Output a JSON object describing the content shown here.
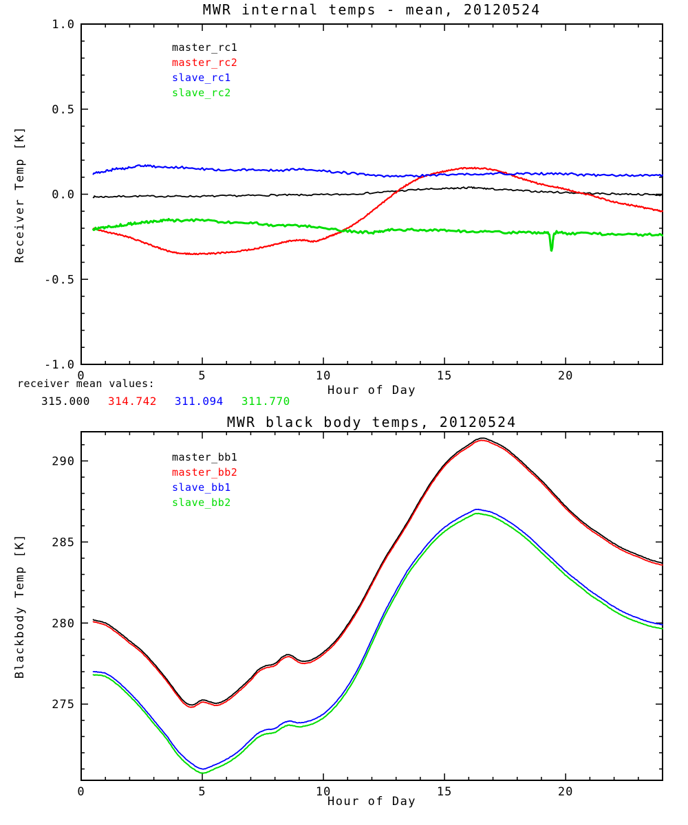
{
  "page": {
    "background": "#ffffff"
  },
  "colors": {
    "black": "#000000",
    "red": "#ff0000",
    "blue": "#0000ff",
    "green": "#00dd00"
  },
  "annotations": {
    "receiver_means": {
      "label": "receiver mean values:",
      "values": [
        {
          "text": "315.000",
          "color": "#000000"
        },
        {
          "text": "314.742",
          "color": "#ff0000"
        },
        {
          "text": "311.094",
          "color": "#0000ff"
        },
        {
          "text": "311.770",
          "color": "#00dd00"
        }
      ]
    }
  },
  "chart_data": [
    {
      "id": "receiver_temps",
      "type": "line",
      "title": "MWR internal temps - mean, 20120524",
      "xlabel": "Hour of Day",
      "ylabel": "Receiver Temp [K]",
      "xlim": [
        0,
        24
      ],
      "ylim": [
        -1.0,
        1.0
      ],
      "xticks": [
        0,
        5,
        10,
        15,
        20
      ],
      "xtick_labels": [
        "0",
        "5",
        "10",
        "15",
        "20"
      ],
      "xminor": 1,
      "yticks": [
        -1.0,
        -0.5,
        0.0,
        0.5,
        1.0
      ],
      "ytick_labels": [
        "-1.0",
        "-0.5",
        "0.0",
        "0.5",
        "1.0"
      ],
      "yminor": 0.1,
      "grid": false,
      "legend_position": "upper-left-inside",
      "legend": [
        {
          "name": "master_rc1",
          "color": "#000000"
        },
        {
          "name": "master_rc2",
          "color": "#ff0000"
        },
        {
          "name": "slave_rc1",
          "color": "#0000ff"
        },
        {
          "name": "slave_rc2",
          "color": "#00dd00"
        }
      ],
      "series": [
        {
          "name": "master_rc1",
          "color": "#000000",
          "width": 1.8,
          "noise": 0.005,
          "x": [
            0.5,
            1,
            2,
            3,
            4,
            5,
            6,
            7,
            8,
            9,
            10,
            11,
            12,
            13,
            14,
            15,
            15.5,
            16,
            16.5,
            17,
            18,
            19,
            20,
            21,
            22,
            23,
            24
          ],
          "y": [
            -0.015,
            -0.015,
            -0.012,
            -0.012,
            -0.012,
            -0.012,
            -0.01,
            -0.008,
            -0.005,
            -0.005,
            -0.003,
            0,
            0.008,
            0.018,
            0.028,
            0.032,
            0.035,
            0.038,
            0.035,
            0.03,
            0.022,
            0.015,
            0.01,
            0.005,
            0.002,
            0,
            -0.005
          ]
        },
        {
          "name": "master_rc2",
          "color": "#ff0000",
          "width": 2.2,
          "noise": 0.004,
          "x": [
            0.5,
            1,
            1.5,
            2,
            2.5,
            3,
            3.5,
            4,
            4.5,
            5,
            5.5,
            6,
            6.5,
            7,
            7.5,
            8,
            8.5,
            9,
            9.3,
            9.6,
            10,
            10.3,
            10.6,
            11,
            11.5,
            12,
            12.5,
            13,
            13.5,
            14,
            14.5,
            15,
            15.5,
            16,
            16.5,
            17,
            17.5,
            18,
            18.5,
            19,
            19.5,
            20,
            20.5,
            21,
            21.5,
            22,
            22.5,
            23,
            23.5,
            24
          ],
          "y": [
            -0.2,
            -0.22,
            -0.235,
            -0.255,
            -0.28,
            -0.305,
            -0.33,
            -0.345,
            -0.35,
            -0.35,
            -0.348,
            -0.342,
            -0.335,
            -0.325,
            -0.312,
            -0.295,
            -0.278,
            -0.27,
            -0.272,
            -0.278,
            -0.262,
            -0.245,
            -0.228,
            -0.2,
            -0.155,
            -0.1,
            -0.045,
            0.01,
            0.06,
            0.095,
            0.12,
            0.135,
            0.148,
            0.153,
            0.152,
            0.143,
            0.125,
            0.1,
            0.078,
            0.058,
            0.045,
            0.03,
            0.012,
            -0.005,
            -0.025,
            -0.045,
            -0.06,
            -0.072,
            -0.088,
            -0.1
          ]
        },
        {
          "name": "slave_rc1",
          "color": "#0000ff",
          "width": 2.2,
          "noise": 0.007,
          "x": [
            0.5,
            1,
            1.5,
            2,
            2.5,
            3,
            4,
            5,
            6,
            7,
            8,
            9,
            10,
            11,
            12,
            13,
            14,
            15,
            16,
            17,
            18,
            19,
            20,
            21,
            22,
            23,
            24
          ],
          "y": [
            0.125,
            0.135,
            0.15,
            0.155,
            0.17,
            0.162,
            0.158,
            0.148,
            0.14,
            0.143,
            0.14,
            0.145,
            0.135,
            0.125,
            0.112,
            0.105,
            0.11,
            0.112,
            0.118,
            0.122,
            0.12,
            0.12,
            0.12,
            0.112,
            0.112,
            0.112,
            0.112
          ]
        },
        {
          "name": "slave_rc2",
          "color": "#00dd00",
          "width": 3.0,
          "noise": 0.007,
          "x": [
            0.5,
            1,
            1.5,
            2,
            2.5,
            3,
            3.5,
            4,
            5,
            6,
            7,
            8,
            9,
            10,
            11,
            12,
            12.5,
            13,
            14,
            15,
            16,
            17,
            18,
            19,
            19.3,
            19.42,
            19.55,
            20,
            21,
            22,
            23,
            24
          ],
          "y": [
            -0.205,
            -0.195,
            -0.185,
            -0.175,
            -0.165,
            -0.16,
            -0.152,
            -0.155,
            -0.152,
            -0.165,
            -0.168,
            -0.182,
            -0.185,
            -0.195,
            -0.215,
            -0.225,
            -0.215,
            -0.208,
            -0.21,
            -0.212,
            -0.22,
            -0.222,
            -0.225,
            -0.228,
            -0.23,
            -0.33,
            -0.23,
            -0.23,
            -0.232,
            -0.235,
            -0.238,
            -0.238
          ]
        }
      ]
    },
    {
      "id": "blackbody_temps",
      "type": "line",
      "title": "MWR black body temps, 20120524",
      "xlabel": "Hour of Day",
      "ylabel": "Blackbody Temp [K]",
      "xlim": [
        0,
        24
      ],
      "ylim": [
        270.3,
        291.8
      ],
      "xticks": [
        0,
        5,
        10,
        15,
        20
      ],
      "xtick_labels": [
        "0",
        "5",
        "10",
        "15",
        "20"
      ],
      "xminor": 1,
      "yticks": [
        275,
        280,
        285,
        290
      ],
      "ytick_labels": [
        "275",
        "280",
        "285",
        "290"
      ],
      "yminor": 1,
      "grid": false,
      "legend_position": "upper-left-inside",
      "legend": [
        {
          "name": "master_bb1",
          "color": "#000000"
        },
        {
          "name": "master_bb2",
          "color": "#ff0000"
        },
        {
          "name": "slave_bb1",
          "color": "#0000ff"
        },
        {
          "name": "slave_bb2",
          "color": "#00dd00"
        }
      ],
      "series": [
        {
          "name": "master_bb1",
          "color": "#000000",
          "width": 1.8,
          "noise": 0.015,
          "x": [
            0.5,
            1,
            1.5,
            2,
            2.5,
            3,
            3.5,
            4,
            4.3,
            4.6,
            5,
            5.3,
            5.6,
            6,
            6.5,
            7,
            7.3,
            7.6,
            8,
            8.3,
            8.6,
            9,
            9.3,
            9.6,
            10,
            10.5,
            11,
            11.5,
            12,
            12.5,
            13,
            13.5,
            14,
            14.5,
            15,
            15.5,
            16,
            16.3,
            16.6,
            17,
            17.5,
            18,
            18.5,
            19,
            19.5,
            20,
            20.5,
            21,
            21.5,
            22,
            22.5,
            23,
            23.5,
            24
          ],
          "y": [
            280.2,
            280.0,
            279.5,
            278.9,
            278.3,
            277.5,
            276.6,
            275.6,
            275.1,
            274.95,
            275.25,
            275.15,
            275.05,
            275.3,
            275.9,
            276.6,
            277.1,
            277.35,
            277.5,
            277.9,
            278.05,
            277.7,
            277.65,
            277.8,
            278.2,
            278.9,
            279.9,
            281.1,
            282.5,
            283.9,
            285.1,
            286.3,
            287.6,
            288.8,
            289.8,
            290.5,
            291.0,
            291.3,
            291.4,
            291.2,
            290.8,
            290.2,
            289.5,
            288.8,
            288.0,
            287.2,
            286.5,
            285.9,
            285.4,
            284.9,
            284.5,
            284.2,
            283.9,
            283.7
          ]
        },
        {
          "name": "master_bb2",
          "color": "#ff0000",
          "width": 1.8,
          "noise": 0.015,
          "x": [
            0.5,
            1,
            1.5,
            2,
            2.5,
            3,
            3.5,
            4,
            4.3,
            4.6,
            5,
            5.3,
            5.6,
            6,
            6.5,
            7,
            7.3,
            7.6,
            8,
            8.3,
            8.6,
            9,
            9.3,
            9.6,
            10,
            10.5,
            11,
            11.5,
            12,
            12.5,
            13,
            13.5,
            14,
            14.5,
            15,
            15.5,
            16,
            16.3,
            16.6,
            17,
            17.5,
            18,
            18.5,
            19,
            19.5,
            20,
            20.5,
            21,
            21.5,
            22,
            22.5,
            23,
            23.5,
            24
          ],
          "y": [
            280.08,
            279.87,
            279.37,
            278.77,
            278.17,
            277.37,
            276.47,
            275.47,
            274.97,
            274.82,
            275.12,
            275.02,
            274.92,
            275.17,
            275.77,
            276.47,
            276.97,
            277.22,
            277.37,
            277.77,
            277.92,
            277.57,
            277.52,
            277.67,
            278.07,
            278.77,
            279.77,
            280.97,
            282.37,
            283.77,
            284.97,
            286.17,
            287.47,
            288.67,
            289.67,
            290.37,
            290.87,
            291.17,
            291.27,
            291.07,
            290.67,
            290.07,
            289.37,
            288.67,
            287.87,
            287.07,
            286.37,
            285.77,
            285.27,
            284.77,
            284.37,
            284.07,
            283.77,
            283.57
          ]
        },
        {
          "name": "slave_bb1",
          "color": "#0000ff",
          "width": 1.8,
          "noise": 0.015,
          "x": [
            0.5,
            1,
            1.5,
            2,
            2.5,
            3,
            3.5,
            4,
            4.5,
            5,
            5.5,
            6,
            6.5,
            7,
            7.3,
            7.6,
            8,
            8.3,
            8.6,
            9,
            9.5,
            10,
            10.5,
            11,
            11.5,
            12,
            12.5,
            13,
            13.5,
            14,
            14.5,
            15,
            15.5,
            16,
            16.3,
            16.6,
            17,
            17.5,
            18,
            18.5,
            19,
            19.5,
            20,
            20.5,
            21,
            21.5,
            22,
            22.5,
            23,
            23.5,
            24
          ],
          "y": [
            277.0,
            276.9,
            276.4,
            275.7,
            274.9,
            274.0,
            273.1,
            272.1,
            271.4,
            271.0,
            271.25,
            271.6,
            272.1,
            272.8,
            273.2,
            273.4,
            273.5,
            273.8,
            273.95,
            273.85,
            274.0,
            274.4,
            275.1,
            276.1,
            277.4,
            279.0,
            280.6,
            282.0,
            283.3,
            284.3,
            285.2,
            285.9,
            286.4,
            286.8,
            287.0,
            286.95,
            286.8,
            286.4,
            285.9,
            285.3,
            284.6,
            283.9,
            283.2,
            282.6,
            282.0,
            281.5,
            281.0,
            280.6,
            280.3,
            280.05,
            279.9
          ]
        },
        {
          "name": "slave_bb2",
          "color": "#00dd00",
          "width": 2.0,
          "noise": 0.015,
          "x": [
            0.5,
            1,
            1.5,
            2,
            2.5,
            3,
            3.5,
            4,
            4.5,
            5,
            5.5,
            6,
            6.5,
            7,
            7.3,
            7.6,
            8,
            8.3,
            8.6,
            9,
            9.5,
            10,
            10.5,
            11,
            11.5,
            12,
            12.5,
            13,
            13.5,
            14,
            14.5,
            15,
            15.5,
            16,
            16.3,
            16.6,
            17,
            17.5,
            18,
            18.5,
            19,
            19.5,
            20,
            20.5,
            21,
            21.5,
            22,
            22.5,
            23,
            23.5,
            24
          ],
          "y": [
            276.8,
            276.7,
            276.2,
            275.5,
            274.7,
            273.8,
            272.9,
            271.85,
            271.15,
            270.75,
            271.0,
            271.35,
            271.85,
            272.55,
            272.95,
            273.15,
            273.25,
            273.55,
            273.7,
            273.6,
            273.75,
            274.15,
            274.85,
            275.85,
            277.15,
            278.75,
            280.35,
            281.75,
            283.05,
            284.05,
            284.95,
            285.65,
            286.15,
            286.55,
            286.75,
            286.7,
            286.55,
            286.15,
            285.65,
            285.05,
            284.35,
            283.65,
            282.95,
            282.35,
            281.75,
            281.25,
            280.75,
            280.35,
            280.05,
            279.8,
            279.65
          ]
        }
      ]
    }
  ]
}
